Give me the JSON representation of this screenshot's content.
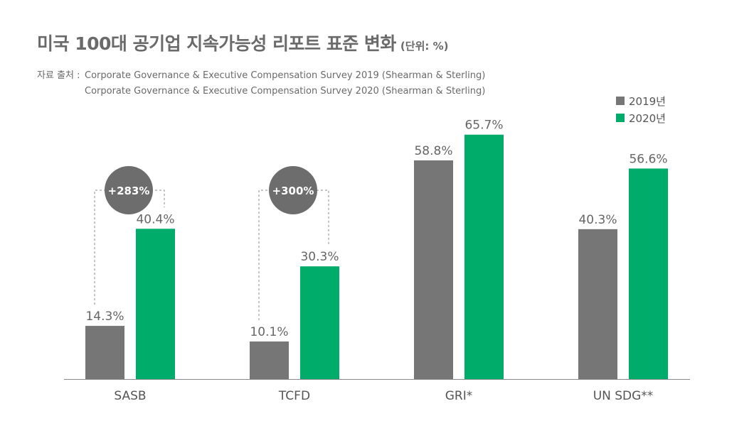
{
  "title": "미국 100대 공기업 지속가능성 리포트 표준 변화",
  "unit": "(단위: %)",
  "source": {
    "label": "자료 출처 :",
    "lines": [
      "Corporate Governance & Executive Compensation Survey 2019 (Shearman & Sterling)",
      "Corporate Governance & Executive Compensation Survey 2020 (Shearman & Sterling)"
    ]
  },
  "colors": {
    "y2019": "#767676",
    "y2020": "#00ac69",
    "badge": "#6d6d6d"
  },
  "chart_data": {
    "type": "bar",
    "title": "미국 100대 공기업 지속가능성 리포트 표준 변화",
    "xlabel": "",
    "ylabel": "",
    "ylim": [
      0,
      70
    ],
    "grid": false,
    "legend_position": "top-right",
    "categories": [
      "SASB",
      "TCFD",
      "GRI*",
      "UN SDG**"
    ],
    "series": [
      {
        "name": "2019년",
        "values": [
          14.3,
          10.1,
          58.8,
          40.3
        ],
        "labels": [
          "14.3%",
          "10.1%",
          "58.8%",
          "40.3%"
        ]
      },
      {
        "name": "2020년",
        "values": [
          40.4,
          30.3,
          65.7,
          56.6
        ],
        "labels": [
          "40.4%",
          "30.3%",
          "65.7%",
          "56.6%"
        ]
      }
    ],
    "annotations": [
      {
        "category": "SASB",
        "text": "+283%"
      },
      {
        "category": "TCFD",
        "text": "+300%"
      }
    ]
  }
}
